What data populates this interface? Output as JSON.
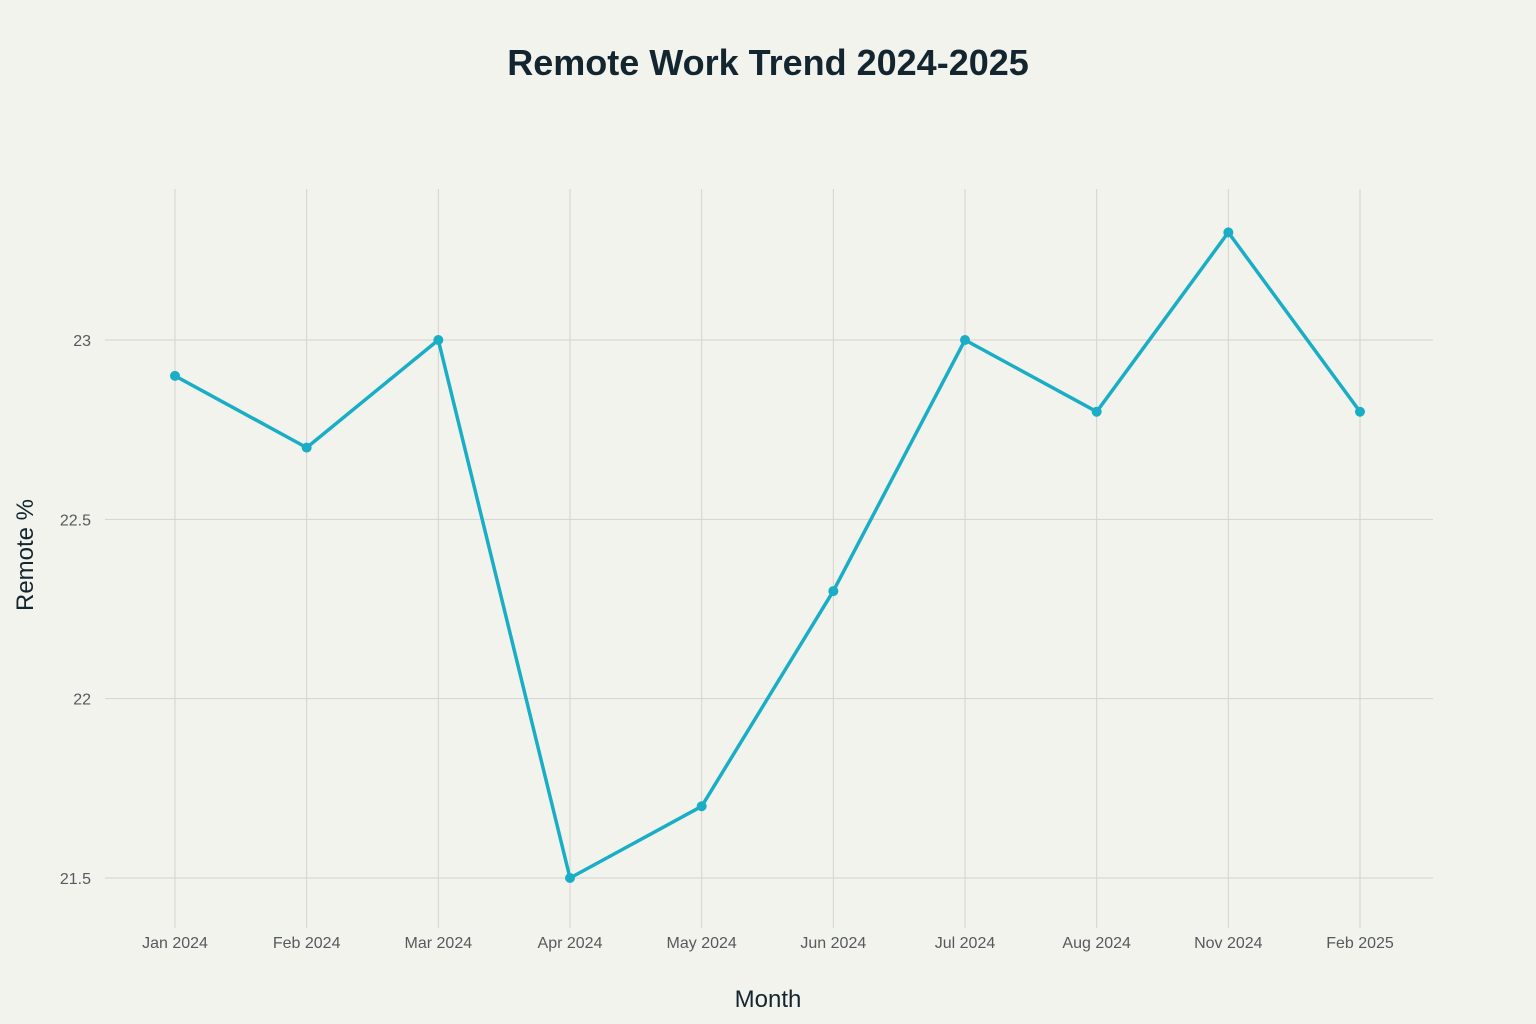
{
  "chart_data": {
    "type": "line",
    "title": "Remote Work Trend 2024-2025",
    "xlabel": "Month",
    "ylabel": "Remote %",
    "categories": [
      "Jan 2024",
      "Feb 2024",
      "Mar 2024",
      "Apr 2024",
      "May 2024",
      "Jun 2024",
      "Jul 2024",
      "Aug 2024",
      "Nov 2024",
      "Feb 2025"
    ],
    "series": [
      {
        "values": [
          22.9,
          22.7,
          23.0,
          21.5,
          21.7,
          22.3,
          23.0,
          22.8,
          23.3,
          22.8
        ]
      }
    ],
    "yticks": [
      21.5,
      22,
      22.5,
      23
    ],
    "ytick_labels": [
      "21.5",
      "22",
      "22.5",
      "23"
    ],
    "ylim": [
      21.47,
      23.42
    ],
    "grid": true,
    "legend": "none",
    "colors": {
      "line": "#1aaec6",
      "background": "#f3f3ee"
    }
  }
}
